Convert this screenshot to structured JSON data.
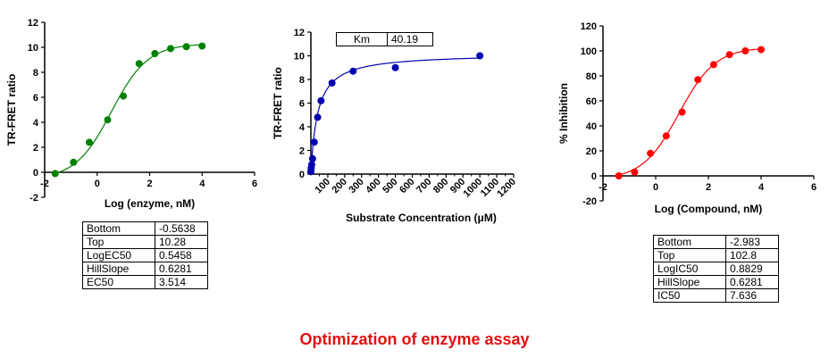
{
  "caption": "Optimization of enzyme assay",
  "chart_data": [
    {
      "type": "scatter",
      "fit": "sigmoidal",
      "xlabel": "Log (enzyme, nM)",
      "ylabel": "TR-FRET ratio",
      "xlim": [
        -2,
        6
      ],
      "ylim": [
        -2,
        12
      ],
      "xticks": [
        -2,
        0,
        2,
        4,
        6
      ],
      "yticks": [
        -2,
        0,
        2,
        4,
        6,
        8,
        10,
        12
      ],
      "color": "#008000",
      "points": {
        "x": [
          -1.6,
          -0.9,
          -0.3,
          0.4,
          1.0,
          1.6,
          2.2,
          2.8,
          3.4,
          4.0
        ],
        "y": [
          -0.1,
          0.8,
          2.4,
          4.2,
          6.1,
          8.7,
          9.5,
          9.9,
          10.05,
          10.1
        ]
      },
      "params": [
        {
          "name": "Bottom",
          "value": "-0.5638"
        },
        {
          "name": "Top",
          "value": "10.28"
        },
        {
          "name": "LogEC50",
          "value": "0.5458"
        },
        {
          "name": "HillSlope",
          "value": "0.6281"
        },
        {
          "name": "EC50",
          "value": "3.514"
        }
      ]
    },
    {
      "type": "scatter",
      "fit": "michaelis-menten",
      "xlabel": "Substrate Concentration (μM)",
      "ylabel": "TR-FRET ratio",
      "xlim": [
        0,
        1200
      ],
      "ylim": [
        0,
        12
      ],
      "xticks": [
        100,
        200,
        300,
        400,
        500,
        600,
        700,
        800,
        900,
        1000,
        1100,
        1200
      ],
      "yticks": [
        0,
        2,
        4,
        6,
        8,
        10,
        12
      ],
      "color": "#0000b0",
      "vmax": 10.2,
      "points": {
        "x": [
          0,
          2,
          5,
          10,
          20,
          40,
          60,
          125,
          250,
          500,
          1000
        ],
        "y": [
          0.2,
          0.5,
          0.8,
          1.3,
          2.7,
          4.8,
          6.2,
          7.7,
          8.7,
          9.0,
          10.0
        ]
      },
      "params": [
        {
          "name": "Km",
          "value": "40.19"
        }
      ]
    },
    {
      "type": "scatter",
      "fit": "sigmoidal",
      "xlabel": "Log (Compound, nM)",
      "ylabel": "% Inhibition",
      "xlim": [
        -2,
        6
      ],
      "ylim": [
        -20,
        120
      ],
      "xticks": [
        -2,
        0,
        2,
        4,
        6
      ],
      "yticks": [
        -20,
        0,
        20,
        40,
        60,
        80,
        100,
        120
      ],
      "color": "#ff0000",
      "points": {
        "x": [
          -1.4,
          -0.8,
          -0.2,
          0.4,
          1.0,
          1.6,
          2.2,
          2.8,
          3.4,
          4.0
        ],
        "y": [
          0,
          3,
          18,
          32,
          51,
          77,
          89,
          97,
          100,
          101
        ]
      },
      "params": [
        {
          "name": "Bottom",
          "value": "-2.983"
        },
        {
          "name": "Top",
          "value": "102.8"
        },
        {
          "name": "LogIC50",
          "value": "0.8829"
        },
        {
          "name": "HillSlope",
          "value": "0.6281"
        },
        {
          "name": "IC50",
          "value": "7.636"
        }
      ]
    }
  ]
}
